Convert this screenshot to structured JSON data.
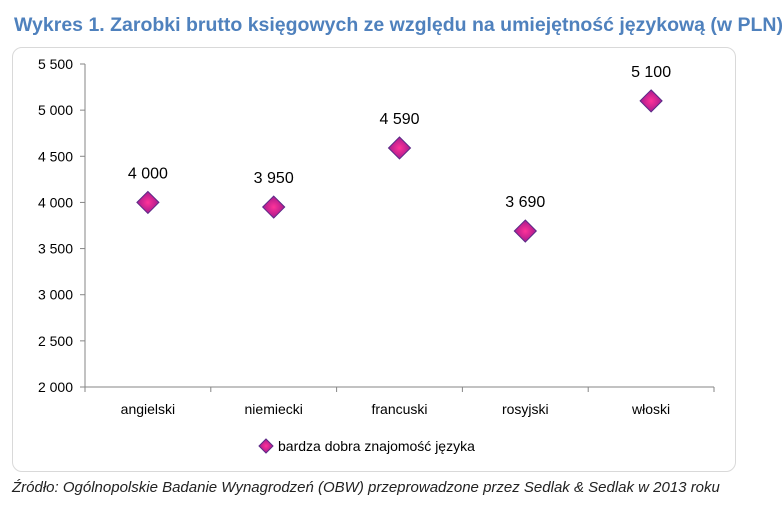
{
  "title": "Wykres 1. Zarobki brutto księgowych ze względu na umiejętność językową (w PLN)",
  "source": "Źródło: Ogólnopolskie Badanie Wynagrodzeń (OBW) przeprowadzone przez Sedlak & Sedlak w 2013 roku",
  "colors": {
    "title": "#4f81bd",
    "marker": "#7030a0",
    "marker_center": "#ff3399"
  },
  "chart_data": {
    "type": "scatter",
    "title": "Wykres 1. Zarobki brutto księgowych ze względu na umiejętność językową (w PLN)",
    "categories": [
      "angielski",
      "niemiecki",
      "francuski",
      "rosyjski",
      "włoski"
    ],
    "series": [
      {
        "name": "bardza dobra znajomość języka",
        "values": [
          4000,
          3950,
          4590,
          3690,
          5100
        ]
      }
    ],
    "data_labels": [
      "4 000",
      "3 950",
      "4 590",
      "3 690",
      "5 100"
    ],
    "y_ticks": [
      2000,
      2500,
      3000,
      3500,
      4000,
      4500,
      5000,
      5500
    ],
    "y_tick_labels": [
      "2 000",
      "2 500",
      "3 000",
      "3 500",
      "4 000",
      "4 500",
      "5 000",
      "5 500"
    ],
    "ylim": [
      2000,
      5500
    ],
    "grid": false,
    "legend": "bottom"
  }
}
